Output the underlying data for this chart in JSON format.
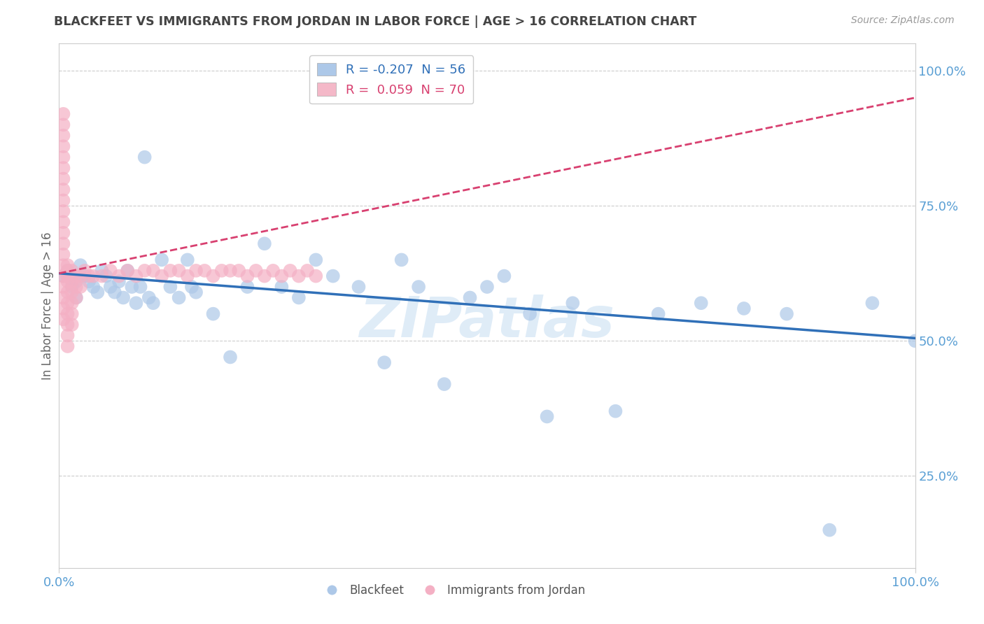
{
  "title": "BLACKFEET VS IMMIGRANTS FROM JORDAN IN LABOR FORCE | AGE > 16 CORRELATION CHART",
  "source": "Source: ZipAtlas.com",
  "ylabel": "In Labor Force | Age > 16",
  "right_yticks": [
    "100.0%",
    "75.0%",
    "50.0%",
    "25.0%"
  ],
  "right_ytick_vals": [
    1.0,
    0.75,
    0.5,
    0.25
  ],
  "xmin": 0.0,
  "xmax": 1.0,
  "ymin": 0.08,
  "ymax": 1.05,
  "legend1_label": "R = -0.207  N = 56",
  "legend2_label": "R =  0.059  N = 70",
  "legend1_color": "#adc8e8",
  "legend2_color": "#f4b8c8",
  "dot_color_blue": "#adc8e8",
  "dot_color_pink": "#f4b0c4",
  "line_color_blue": "#3070b8",
  "line_color_pink": "#d84070",
  "watermark": "ZIPatlas",
  "blackfeet_x": [
    0.005,
    0.01,
    0.015,
    0.02,
    0.02,
    0.025,
    0.03,
    0.035,
    0.04,
    0.045,
    0.05,
    0.055,
    0.06,
    0.065,
    0.07,
    0.075,
    0.08,
    0.085,
    0.09,
    0.095,
    0.1,
    0.105,
    0.11,
    0.12,
    0.13,
    0.14,
    0.15,
    0.155,
    0.16,
    0.18,
    0.2,
    0.22,
    0.24,
    0.26,
    0.28,
    0.3,
    0.32,
    0.35,
    0.38,
    0.4,
    0.42,
    0.45,
    0.48,
    0.5,
    0.52,
    0.55,
    0.57,
    0.6,
    0.65,
    0.7,
    0.75,
    0.8,
    0.85,
    0.9,
    0.95,
    1.0
  ],
  "blackfeet_y": [
    0.62,
    0.63,
    0.6,
    0.61,
    0.58,
    0.64,
    0.62,
    0.61,
    0.6,
    0.59,
    0.63,
    0.62,
    0.6,
    0.59,
    0.61,
    0.58,
    0.63,
    0.6,
    0.57,
    0.6,
    0.84,
    0.58,
    0.57,
    0.65,
    0.6,
    0.58,
    0.65,
    0.6,
    0.59,
    0.55,
    0.47,
    0.6,
    0.68,
    0.6,
    0.58,
    0.65,
    0.62,
    0.6,
    0.46,
    0.65,
    0.6,
    0.42,
    0.58,
    0.6,
    0.62,
    0.55,
    0.36,
    0.57,
    0.37,
    0.55,
    0.57,
    0.56,
    0.55,
    0.15,
    0.57,
    0.5
  ],
  "jordan_x": [
    0.005,
    0.005,
    0.005,
    0.005,
    0.005,
    0.005,
    0.005,
    0.005,
    0.005,
    0.005,
    0.005,
    0.005,
    0.005,
    0.005,
    0.005,
    0.005,
    0.005,
    0.005,
    0.005,
    0.005,
    0.01,
    0.01,
    0.01,
    0.01,
    0.01,
    0.01,
    0.01,
    0.01,
    0.01,
    0.01,
    0.015,
    0.015,
    0.015,
    0.015,
    0.015,
    0.015,
    0.02,
    0.02,
    0.02,
    0.025,
    0.025,
    0.03,
    0.035,
    0.04,
    0.05,
    0.06,
    0.07,
    0.08,
    0.09,
    0.1,
    0.11,
    0.12,
    0.13,
    0.14,
    0.15,
    0.16,
    0.17,
    0.18,
    0.19,
    0.2,
    0.21,
    0.22,
    0.23,
    0.24,
    0.25,
    0.26,
    0.27,
    0.28,
    0.29,
    0.3
  ],
  "jordan_y": [
    0.62,
    0.64,
    0.66,
    0.68,
    0.7,
    0.72,
    0.74,
    0.76,
    0.78,
    0.8,
    0.82,
    0.84,
    0.86,
    0.88,
    0.9,
    0.92,
    0.6,
    0.58,
    0.56,
    0.54,
    0.62,
    0.64,
    0.63,
    0.61,
    0.59,
    0.57,
    0.55,
    0.53,
    0.51,
    0.49,
    0.63,
    0.61,
    0.59,
    0.57,
    0.55,
    0.53,
    0.62,
    0.6,
    0.58,
    0.62,
    0.6,
    0.63,
    0.62,
    0.62,
    0.62,
    0.63,
    0.62,
    0.63,
    0.62,
    0.63,
    0.63,
    0.62,
    0.63,
    0.63,
    0.62,
    0.63,
    0.63,
    0.62,
    0.63,
    0.63,
    0.63,
    0.62,
    0.63,
    0.62,
    0.63,
    0.62,
    0.63,
    0.62,
    0.63,
    0.62
  ],
  "blue_trend_start_x": 0.0,
  "blue_trend_end_x": 1.0,
  "blue_trend_start_y": 0.625,
  "blue_trend_end_y": 0.505,
  "pink_trend_start_x": 0.0,
  "pink_trend_end_x": 1.0,
  "pink_trend_start_y": 0.625,
  "pink_trend_end_y": 0.95,
  "grid_color": "#cccccc",
  "bg_color": "#ffffff",
  "title_color": "#444444",
  "axis_tick_color": "#5a9fd4"
}
